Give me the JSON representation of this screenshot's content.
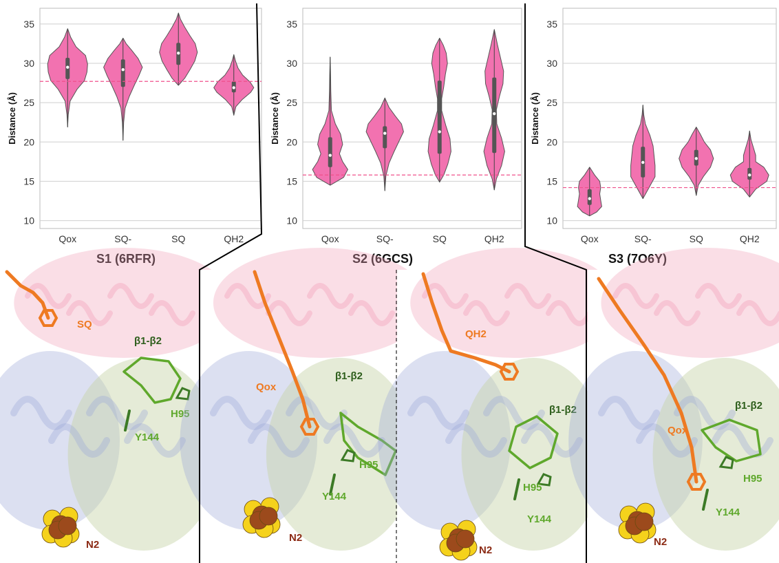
{
  "chart_data": [
    {
      "type": "violin",
      "title": "S1 (6RFR)",
      "ylabel": "Distance (Å)",
      "ylim": [
        9,
        37
      ],
      "yticks": [
        10,
        15,
        20,
        25,
        30,
        35
      ],
      "categories": [
        "Qox",
        "SQ-",
        "SQ",
        "QH2"
      ],
      "reference_line": 27.7,
      "grid": "horizontal",
      "violins": [
        {
          "category": "Qox",
          "min": 21.9,
          "max": 34.4,
          "median": 29.5,
          "q1": 28.0,
          "q3": 30.7,
          "profile": [
            [
              21.9,
              0
            ],
            [
              23.5,
              0.03
            ],
            [
              25.2,
              0.12
            ],
            [
              26.7,
              0.45
            ],
            [
              27.8,
              0.8
            ],
            [
              28.9,
              0.92
            ],
            [
              29.9,
              0.95
            ],
            [
              31.0,
              0.85
            ],
            [
              32.1,
              0.4
            ],
            [
              33.3,
              0.15
            ],
            [
              34.4,
              0
            ]
          ]
        },
        {
          "category": "SQ-",
          "min": 20.2,
          "max": 33.2,
          "median": 29.2,
          "q1": 27.0,
          "q3": 30.5,
          "profile": [
            [
              20.2,
              0
            ],
            [
              22.5,
              0.03
            ],
            [
              24.3,
              0.1
            ],
            [
              25.8,
              0.3
            ],
            [
              27.3,
              0.55
            ],
            [
              28.4,
              0.75
            ],
            [
              29.5,
              0.92
            ],
            [
              30.6,
              0.72
            ],
            [
              31.7,
              0.4
            ],
            [
              32.5,
              0.15
            ],
            [
              33.2,
              0
            ]
          ]
        },
        {
          "category": "SQ",
          "min": 27.2,
          "max": 36.4,
          "median": 31.3,
          "q1": 29.8,
          "q3": 32.6,
          "profile": [
            [
              27.2,
              0
            ],
            [
              28.1,
              0.3
            ],
            [
              29.2,
              0.55
            ],
            [
              30.3,
              0.78
            ],
            [
              31.4,
              0.9
            ],
            [
              32.5,
              0.8
            ],
            [
              33.5,
              0.55
            ],
            [
              34.6,
              0.3
            ],
            [
              35.6,
              0.1
            ],
            [
              36.4,
              0
            ]
          ]
        },
        {
          "category": "QH2",
          "min": 23.4,
          "max": 31.1,
          "median": 26.9,
          "q1": 26.3,
          "q3": 27.7,
          "profile": [
            [
              23.4,
              0
            ],
            [
              24.5,
              0.1
            ],
            [
              25.4,
              0.4
            ],
            [
              26.3,
              0.8
            ],
            [
              26.9,
              0.95
            ],
            [
              27.6,
              0.78
            ],
            [
              28.5,
              0.42
            ],
            [
              29.4,
              0.2
            ],
            [
              30.3,
              0.08
            ],
            [
              31.1,
              0
            ]
          ]
        }
      ]
    },
    {
      "type": "violin",
      "title": "S2 (6GCS)",
      "ylabel": "Distance (Å)",
      "ylim": [
        9,
        37
      ],
      "yticks": [
        10,
        15,
        20,
        25,
        30,
        35
      ],
      "categories": [
        "Qox",
        "SQ-",
        "SQ",
        "QH2"
      ],
      "reference_line": 15.8,
      "grid": "horizontal",
      "violins": [
        {
          "category": "Qox",
          "min": 14.5,
          "max": 30.8,
          "median": 18.3,
          "q1": 16.8,
          "q3": 20.6,
          "profile": [
            [
              14.5,
              0
            ],
            [
              15.5,
              0.65
            ],
            [
              16.5,
              0.85
            ],
            [
              17.5,
              0.6
            ],
            [
              18.5,
              0.45
            ],
            [
              19.7,
              0.6
            ],
            [
              21.0,
              0.5
            ],
            [
              22.3,
              0.25
            ],
            [
              24.0,
              0.06
            ],
            [
              26.5,
              0.03
            ],
            [
              28.5,
              0.02
            ],
            [
              30.8,
              0
            ]
          ]
        },
        {
          "category": "SQ-",
          "min": 13.8,
          "max": 25.6,
          "median": 21.1,
          "q1": 19.2,
          "q3": 22.0,
          "profile": [
            [
              13.8,
              0
            ],
            [
              15.7,
              0.05
            ],
            [
              17.3,
              0.2
            ],
            [
              18.8,
              0.45
            ],
            [
              20.2,
              0.7
            ],
            [
              21.3,
              0.9
            ],
            [
              22.3,
              0.8
            ],
            [
              23.3,
              0.5
            ],
            [
              24.4,
              0.2
            ],
            [
              25.6,
              0
            ]
          ]
        },
        {
          "category": "SQ",
          "min": 14.9,
          "max": 33.2,
          "median": 21.3,
          "q1": 18.5,
          "q3": 27.8,
          "profile": [
            [
              14.9,
              0
            ],
            [
              15.8,
              0.2
            ],
            [
              17.2,
              0.4
            ],
            [
              18.8,
              0.55
            ],
            [
              20.4,
              0.5
            ],
            [
              22.1,
              0.3
            ],
            [
              24.0,
              0.1
            ],
            [
              25.5,
              0.1
            ],
            [
              27.0,
              0.2
            ],
            [
              28.6,
              0.28
            ],
            [
              30.0,
              0.38
            ],
            [
              31.3,
              0.32
            ],
            [
              32.3,
              0.18
            ],
            [
              33.2,
              0
            ]
          ]
        },
        {
          "category": "QH2",
          "min": 13.9,
          "max": 34.3,
          "median": 23.6,
          "q1": 18.6,
          "q3": 28.2,
          "profile": [
            [
              13.9,
              0
            ],
            [
              15.3,
              0.1
            ],
            [
              17.0,
              0.35
            ],
            [
              18.8,
              0.5
            ],
            [
              20.5,
              0.35
            ],
            [
              22.3,
              0.12
            ],
            [
              24.1,
              0.1
            ],
            [
              25.8,
              0.25
            ],
            [
              27.4,
              0.42
            ],
            [
              29.0,
              0.45
            ],
            [
              30.7,
              0.3
            ],
            [
              32.4,
              0.15
            ],
            [
              34.3,
              0
            ]
          ]
        }
      ]
    },
    {
      "type": "violin",
      "title": "S3 (7O6Y)",
      "ylabel": "Distance (Å)",
      "ylim": [
        9,
        37
      ],
      "yticks": [
        10,
        15,
        20,
        25,
        30,
        35
      ],
      "categories": [
        "Qox",
        "SQ-",
        "SQ",
        "QH2"
      ],
      "reference_line": 14.2,
      "grid": "horizontal",
      "violins": [
        {
          "category": "Qox",
          "min": 10.6,
          "max": 16.8,
          "median": 12.8,
          "q1": 12.0,
          "q3": 14.0,
          "profile": [
            [
              10.6,
              0
            ],
            [
              11.1,
              0.35
            ],
            [
              11.8,
              0.6
            ],
            [
              12.6,
              0.55
            ],
            [
              13.4,
              0.5
            ],
            [
              14.2,
              0.55
            ],
            [
              15.0,
              0.5
            ],
            [
              15.8,
              0.25
            ],
            [
              16.8,
              0
            ]
          ]
        },
        {
          "category": "SQ-",
          "min": 12.8,
          "max": 24.7,
          "median": 17.4,
          "q1": 15.5,
          "q3": 19.4,
          "profile": [
            [
              12.8,
              0
            ],
            [
              14.2,
              0.3
            ],
            [
              15.6,
              0.6
            ],
            [
              17.0,
              0.6
            ],
            [
              18.3,
              0.55
            ],
            [
              19.5,
              0.5
            ],
            [
              20.8,
              0.35
            ],
            [
              22.3,
              0.12
            ],
            [
              23.5,
              0.04
            ],
            [
              24.7,
              0
            ]
          ]
        },
        {
          "category": "SQ",
          "min": 13.2,
          "max": 21.9,
          "median": 17.9,
          "q1": 17.0,
          "q3": 19.0,
          "profile": [
            [
              13.2,
              0
            ],
            [
              14.5,
              0.1
            ],
            [
              15.6,
              0.35
            ],
            [
              16.8,
              0.7
            ],
            [
              17.9,
              0.85
            ],
            [
              19.0,
              0.7
            ],
            [
              20.0,
              0.4
            ],
            [
              21.0,
              0.2
            ],
            [
              21.9,
              0
            ]
          ]
        },
        {
          "category": "QH2",
          "min": 13.0,
          "max": 21.4,
          "median": 15.8,
          "q1": 15.2,
          "q3": 16.7,
          "profile": [
            [
              13.0,
              0
            ],
            [
              14.0,
              0.3
            ],
            [
              15.0,
              0.85
            ],
            [
              15.8,
              0.95
            ],
            [
              16.8,
              0.7
            ],
            [
              17.5,
              0.3
            ],
            [
              18.3,
              0.3
            ],
            [
              19.2,
              0.2
            ],
            [
              20.3,
              0.07
            ],
            [
              21.4,
              0
            ]
          ]
        }
      ]
    }
  ],
  "structure_panels": [
    {
      "id": "S1",
      "labels": [
        "SQ",
        "β1-β2",
        "H95",
        "Y144",
        "N2"
      ]
    },
    {
      "id": "S2a",
      "labels": [
        "Qox",
        "β1-β2",
        "H95",
        "Y144",
        "N2"
      ]
    },
    {
      "id": "S2b",
      "labels": [
        "QH2",
        "β1-β2",
        "H95",
        "Y144",
        "N2"
      ]
    },
    {
      "id": "S3",
      "labels": [
        "Qox",
        "β1-β2",
        "H95",
        "Y144",
        "N2"
      ]
    }
  ],
  "colors": {
    "violin_fill": "#f272b0",
    "violin_edge": "#555555",
    "reference_line": "#f0508c",
    "quinone": "#ee7a22",
    "loop_green": "#5fa82c",
    "dark_green_label": "#2e5e1c",
    "ironsulfur_yellow": "#f5d21c",
    "ironsulfur_brown": "#9c4a1c",
    "n2_label": "#8b2a14",
    "chain_pink": "#f2a0b8",
    "chain_blue": "#9aa6d6",
    "chain_green": "#c6d2a6"
  }
}
